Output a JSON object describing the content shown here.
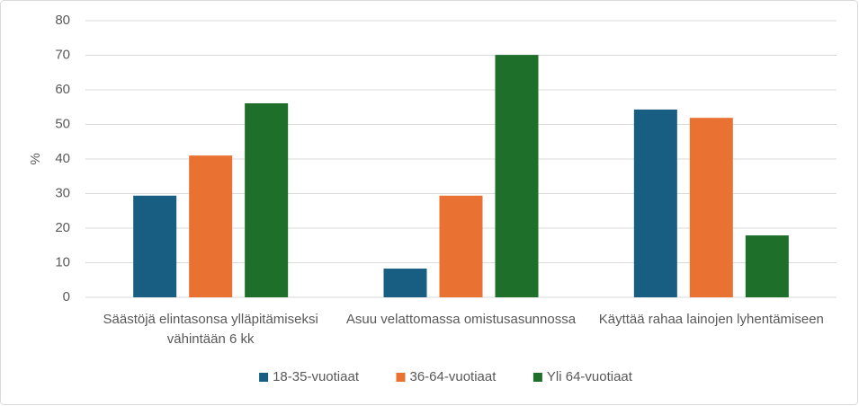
{
  "chart_data": {
    "type": "bar",
    "y_label": "%",
    "categories": [
      "Säästöjä elintasonsa ylläpitämiseksi vähintään 6 kk",
      "Asuu velattomassa omistusasunnossa",
      "Käyttää rahaa lainojen lyhentämiseen"
    ],
    "series": [
      {
        "name": "18-35-vuotiaat",
        "color": "#185e82",
        "values": [
          29.4,
          8.3,
          54.3
        ]
      },
      {
        "name": "36-64-vuotiaat",
        "color": "#e97132",
        "values": [
          41.0,
          29.4,
          51.9
        ]
      },
      {
        "name": "Yli 64-vuotiaat",
        "color": "#1d6f2a",
        "values": [
          56.1,
          70.1,
          17.9
        ]
      }
    ],
    "ylim": [
      0,
      80
    ],
    "yticks": [
      0,
      10,
      20,
      30,
      40,
      50,
      60,
      70,
      80
    ],
    "grid": true,
    "legend": "bottom"
  }
}
